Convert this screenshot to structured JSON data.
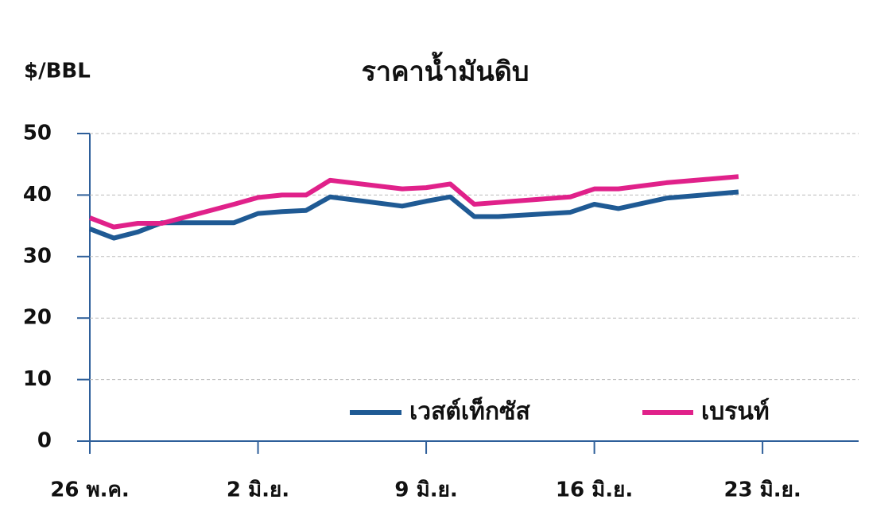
{
  "chart_data": {
    "type": "line",
    "title": "ราคาน้ำมันดิบ",
    "y_label": "$/BBL",
    "x": [
      0,
      1,
      2,
      3,
      6,
      7,
      8,
      9,
      10,
      13,
      14,
      15,
      16,
      17,
      20,
      21,
      22,
      24,
      27
    ],
    "series": [
      {
        "name": "เวสต์เท็กซัส",
        "color": "#1f5a94",
        "values": [
          34.5,
          33,
          34,
          35.5,
          35.5,
          37,
          37.3,
          37.5,
          39.7,
          38.2,
          39,
          39.7,
          36.5,
          36.5,
          37.2,
          38.5,
          37.8,
          39.5,
          40.5
        ]
      },
      {
        "name": "เบรนท์",
        "color": "#e0218a",
        "values": [
          36.3,
          34.8,
          35.4,
          35.4,
          38.5,
          39.6,
          40,
          40,
          42.4,
          41,
          41.2,
          41.8,
          38.5,
          38.8,
          39.7,
          41,
          41,
          42,
          43
        ]
      }
    ],
    "xlim": [
      0,
      32
    ],
    "xticks": [
      {
        "value": 0,
        "label": "26 พ.ค."
      },
      {
        "value": 7,
        "label": "2 มิ.ย."
      },
      {
        "value": 14,
        "label": "9 มิ.ย."
      },
      {
        "value": 21,
        "label": "16 มิ.ย."
      },
      {
        "value": 28,
        "label": "23 มิ.ย."
      }
    ],
    "ylim": [
      0,
      50
    ],
    "yticks": [
      0,
      10,
      20,
      30,
      40,
      50
    ],
    "grid": true
  }
}
